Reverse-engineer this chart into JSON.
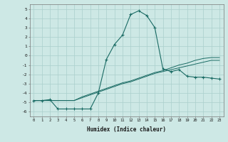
{
  "xlabel": "Humidex (Indice chaleur)",
  "background_color": "#cde8e5",
  "grid_color": "#aacfcc",
  "line_color": "#1a6b64",
  "xlim": [
    -0.5,
    23.5
  ],
  "ylim": [
    -6.5,
    5.5
  ],
  "xticks": [
    0,
    1,
    2,
    3,
    4,
    5,
    6,
    7,
    8,
    9,
    10,
    11,
    12,
    13,
    14,
    15,
    16,
    17,
    18,
    19,
    20,
    21,
    22,
    23
  ],
  "yticks": [
    -6,
    -5,
    -4,
    -3,
    -2,
    -1,
    0,
    1,
    2,
    3,
    4,
    5
  ],
  "curve1_x": [
    0,
    1,
    2,
    3,
    4,
    5,
    6,
    7,
    8,
    9,
    10,
    11,
    12,
    13,
    14,
    15,
    16,
    17,
    18,
    19,
    20,
    21,
    22,
    23
  ],
  "curve1_y": [
    -4.8,
    -4.8,
    -4.7,
    -5.7,
    -5.7,
    -5.7,
    -5.7,
    -5.7,
    -4.0,
    -0.4,
    1.2,
    2.2,
    4.4,
    4.8,
    4.3,
    3.0,
    -1.4,
    -1.7,
    -1.5,
    -2.2,
    -2.3,
    -2.3,
    -2.4,
    -2.5
  ],
  "curve2_x": [
    0,
    1,
    2,
    3,
    4,
    5,
    6,
    7,
    8,
    9,
    10,
    11,
    12,
    13,
    14,
    15,
    16,
    17,
    18,
    19,
    20,
    21,
    22,
    23
  ],
  "curve2_y": [
    -4.8,
    -4.8,
    -4.8,
    -4.8,
    -4.8,
    -4.8,
    -4.4,
    -4.1,
    -3.8,
    -3.5,
    -3.2,
    -2.9,
    -2.7,
    -2.4,
    -2.1,
    -1.8,
    -1.6,
    -1.3,
    -1.0,
    -0.8,
    -0.5,
    -0.3,
    -0.2,
    -0.2
  ],
  "curve3_x": [
    0,
    1,
    2,
    3,
    4,
    5,
    6,
    7,
    8,
    9,
    10,
    11,
    12,
    13,
    14,
    15,
    16,
    17,
    18,
    19,
    20,
    21,
    22,
    23
  ],
  "curve3_y": [
    -4.8,
    -4.8,
    -4.8,
    -4.8,
    -4.8,
    -4.8,
    -4.5,
    -4.2,
    -3.9,
    -3.6,
    -3.3,
    -3.0,
    -2.8,
    -2.5,
    -2.2,
    -1.9,
    -1.7,
    -1.5,
    -1.3,
    -1.1,
    -0.9,
    -0.7,
    -0.5,
    -0.5
  ],
  "marker": "+"
}
